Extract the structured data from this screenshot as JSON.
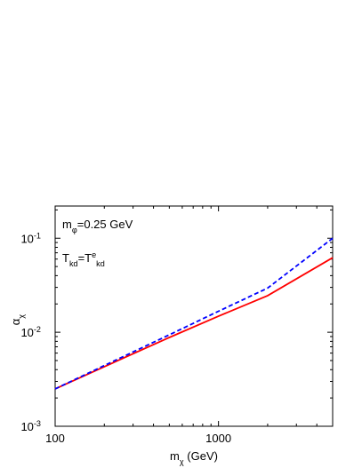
{
  "chart_data": {
    "type": "line",
    "xlabel": [
      {
        "text": "m"
      },
      {
        "text": "χ",
        "sub": true
      },
      {
        "text": " (GeV)"
      }
    ],
    "ylabel": [
      {
        "text": "α"
      },
      {
        "text": "χ",
        "sub": true
      }
    ],
    "annotations": [
      [
        {
          "text": "m"
        },
        {
          "text": "φ",
          "sub": true
        },
        {
          "text": "=0.25 GeV"
        }
      ],
      [
        {
          "text": "T"
        },
        {
          "text": "kd",
          "sub": true
        },
        {
          "text": "=T"
        },
        {
          "text": "e",
          "sup": true
        },
        {
          "text": "kd",
          "sub": true
        }
      ]
    ],
    "x": [
      100,
      200,
      500,
      1000,
      2000,
      5000
    ],
    "series": [
      {
        "color": "#ff0000",
        "dash": false,
        "values": [
          0.0025,
          0.0043,
          0.0088,
          0.0148,
          0.0245,
          0.062
        ]
      },
      {
        "color": "#0000ff",
        "dash": true,
        "values": [
          0.0025,
          0.00443,
          0.0094,
          0.0167,
          0.0295,
          0.1
        ]
      }
    ],
    "log_x": true,
    "log_y": true,
    "xlim": [
      100,
      5000
    ],
    "ylim": [
      0.001,
      0.22
    ],
    "xticks": [
      100,
      1000
    ],
    "yticks": [
      {
        "value": 0.001,
        "label": "10",
        "exponent": "-3"
      },
      {
        "value": 0.01,
        "label": "10",
        "exponent": "-2"
      },
      {
        "value": 0.1,
        "label": "10",
        "exponent": "-1"
      }
    ]
  }
}
